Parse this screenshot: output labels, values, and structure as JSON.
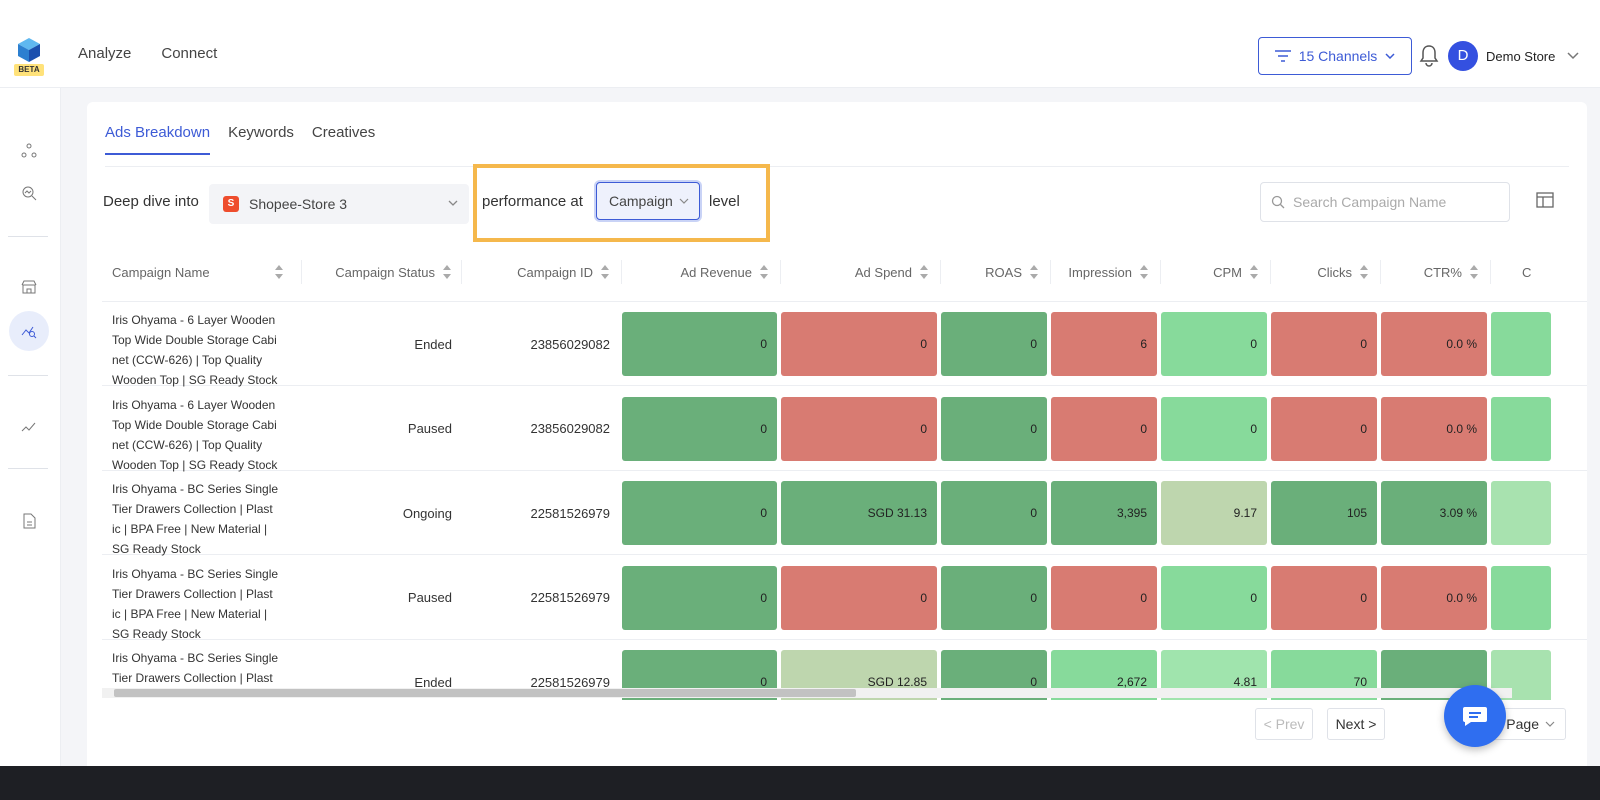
{
  "topbar": {
    "beta_label": "BETA",
    "nav": [
      "Analyze",
      "Connect"
    ],
    "channels_label": "15 Channels",
    "avatar_letter": "D",
    "store_name": "Demo Store"
  },
  "tabs": [
    "Ads Breakdown",
    "Keywords",
    "Creatives"
  ],
  "filters": {
    "deep_dive_label": "Deep dive into",
    "store_selected": "Shopee-Store 3",
    "performance_label": "performance at",
    "level_selected": "Campaign",
    "level_suffix": "level",
    "search_placeholder": "Search Campaign Name"
  },
  "table": {
    "columns": [
      "Campaign Name",
      "Campaign Status",
      "Campaign ID",
      "Ad Revenue",
      "Ad Spend",
      "ROAS",
      "Impression",
      "CPM",
      "Clicks",
      "CTR%",
      "C"
    ],
    "rows": [
      {
        "name": "Iris Ohyama - 6 Layer Wooden Top Wide Double Storage Cabinet (CCW-626) | Top Quality Wooden Top | SG Ready Stock",
        "name_lines": [
          "Iris Ohyama - 6 Layer Wooden",
          "Top Wide Double Storage Cabi",
          "net (CCW-626) | Top Quality",
          "Wooden Top | SG Ready Stock"
        ],
        "status": "Ended",
        "id": "23856029082",
        "cells": [
          "0",
          "0",
          "0",
          "6",
          "0",
          "0",
          "0.0 %",
          ""
        ],
        "colors": [
          "#6aaf7a",
          "#d87b72",
          "#6aaf7a",
          "#d87b72",
          "#87da9b",
          "#d87b72",
          "#d87b72",
          "#87da9b"
        ]
      },
      {
        "name": "Iris Ohyama - 6 Layer Wooden Top Wide Double Storage Cabinet (CCW-626) | Top Quality Wooden Top | SG Ready Stock",
        "name_lines": [
          "Iris Ohyama - 6 Layer Wooden",
          "Top Wide Double Storage Cabi",
          "net (CCW-626) | Top Quality",
          "Wooden Top | SG Ready Stock"
        ],
        "status": "Paused",
        "id": "23856029082",
        "cells": [
          "0",
          "0",
          "0",
          "0",
          "0",
          "0",
          "0.0 %",
          ""
        ],
        "colors": [
          "#6aaf7a",
          "#d87b72",
          "#6aaf7a",
          "#d87b72",
          "#87da9b",
          "#d87b72",
          "#d87b72",
          "#87da9b"
        ]
      },
      {
        "name": "Iris Ohyama - BC Series Single Tier Drawers Collection | Plastic | BPA Free | New Material | SG Ready Stock",
        "name_lines": [
          "Iris Ohyama - BC Series Single",
          "Tier Drawers Collection | Plast",
          "ic | BPA Free | New Material |",
          "SG Ready Stock"
        ],
        "status": "Ongoing",
        "id": "22581526979",
        "cells": [
          "0",
          "SGD 31.13",
          "0",
          "3,395",
          "9.17",
          "105",
          "3.09 %",
          ""
        ],
        "colors": [
          "#6aaf7a",
          "#6aaf7a",
          "#6aaf7a",
          "#6aaf7a",
          "#bed6ae",
          "#6aaf7a",
          "#6aaf7a",
          "#a8e2af"
        ]
      },
      {
        "name": "Iris Ohyama - BC Series Single Tier Drawers Collection | Plastic | BPA Free | New Material | SG Ready Stock",
        "name_lines": [
          "Iris Ohyama - BC Series Single",
          "Tier Drawers Collection | Plast",
          "ic | BPA Free | New Material |",
          "SG Ready Stock"
        ],
        "status": "Paused",
        "id": "22581526979",
        "cells": [
          "0",
          "0",
          "0",
          "0",
          "0",
          "0",
          "0.0 %",
          ""
        ],
        "colors": [
          "#6aaf7a",
          "#d87b72",
          "#6aaf7a",
          "#d87b72",
          "#87da9b",
          "#d87b72",
          "#d87b72",
          "#87da9b"
        ]
      },
      {
        "name": "Iris Ohyama - BC Series Single Tier Drawers Collection | Plast...",
        "name_lines": [
          "Iris Ohyama - BC Series Single",
          "Tier Drawers Collection | Plast",
          "",
          ""
        ],
        "status": "Ended",
        "id": "22581526979",
        "cells": [
          "0",
          "SGD 12.85",
          "0",
          "2,672",
          "4.81",
          "70",
          "",
          ""
        ],
        "colors": [
          "#6aaf7a",
          "#bed6ae",
          "#6aaf7a",
          "#87da9b",
          "#a0e4ad",
          "#87da9b",
          "#6aaf7a",
          "#a8e2af"
        ]
      }
    ]
  },
  "pagination": {
    "prev_label": "< Prev",
    "next_label": "Next >",
    "per_page_label": "/ Page"
  },
  "colors": {
    "accent": "#3d5bd6",
    "highlight": "#f5b84c",
    "good_dark": "#6aaf7a",
    "good_light": "#87da9b",
    "neutral": "#bed6ae",
    "bad": "#d87b72"
  },
  "icons": {
    "logo": "cube-logo-icon",
    "filter": "filter-icon",
    "bell": "bell-icon",
    "search": "search-icon",
    "columns": "columns-icon",
    "chat": "chat-icon"
  }
}
